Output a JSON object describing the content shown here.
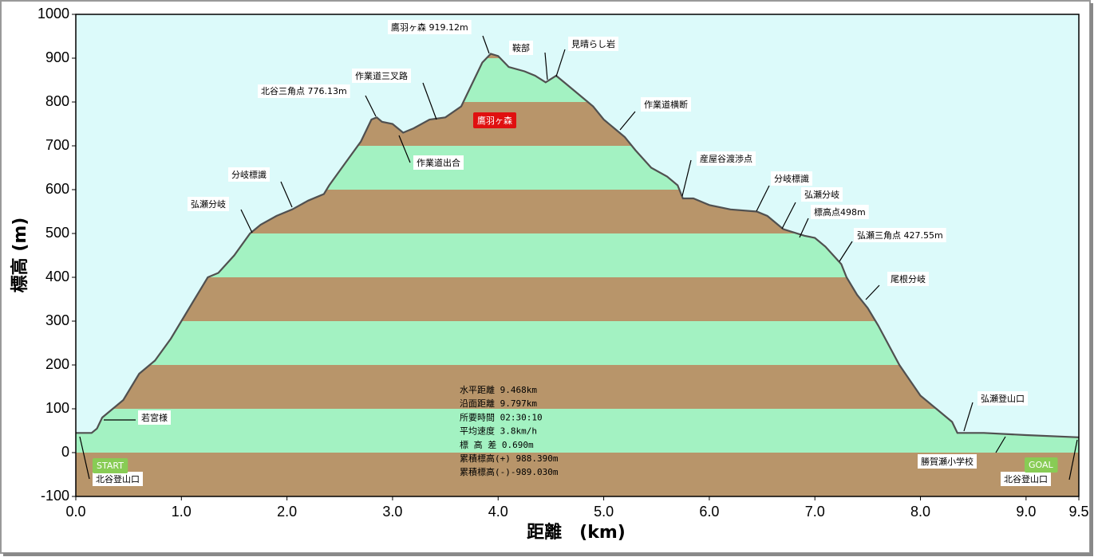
{
  "chart_data": {
    "type": "area",
    "x_label": "距離　(km)",
    "y_label": "標高 (m)",
    "xlim": [
      0,
      9.5
    ],
    "ylim": [
      -100,
      1000
    ],
    "xticks": [
      {
        "value": 0,
        "label": "0.0"
      },
      {
        "value": 1,
        "label": "1.0"
      },
      {
        "value": 2,
        "label": "2.0"
      },
      {
        "value": 3,
        "label": "3.0"
      },
      {
        "value": 4,
        "label": "4.0"
      },
      {
        "value": 5,
        "label": "5.0"
      },
      {
        "value": 6,
        "label": "6.0"
      },
      {
        "value": 7,
        "label": "7.0"
      },
      {
        "value": 8,
        "label": "8.0"
      },
      {
        "value": 9,
        "label": "9.0"
      },
      9.5
    ],
    "yticks": [
      -100,
      0,
      100,
      200,
      300,
      400,
      500,
      600,
      700,
      800,
      900,
      1000
    ],
    "line_color": "#505050",
    "band_colors": [
      "#b8956a",
      "#a3f2c2"
    ],
    "background": "#dcfafa",
    "x": [
      0,
      0.15,
      0.2,
      0.25,
      0.35,
      0.45,
      0.6,
      0.75,
      0.9,
      1.0,
      1.1,
      1.25,
      1.35,
      1.5,
      1.65,
      1.75,
      1.9,
      2.05,
      2.2,
      2.35,
      2.4,
      2.55,
      2.7,
      2.8,
      2.85,
      2.9,
      3.0,
      3.1,
      3.2,
      3.35,
      3.5,
      3.65,
      3.75,
      3.85,
      3.93,
      4.0,
      4.1,
      4.25,
      4.35,
      4.45,
      4.55,
      4.65,
      4.8,
      4.9,
      5.0,
      5.1,
      5.2,
      5.3,
      5.45,
      5.6,
      5.7,
      5.75,
      5.85,
      6.0,
      6.2,
      6.45,
      6.55,
      6.7,
      6.9,
      7.0,
      7.1,
      7.25,
      7.3,
      7.4,
      7.5,
      7.6,
      7.8,
      8.0,
      8.15,
      8.3,
      8.35,
      8.6,
      9.0,
      9.5
    ],
    "values": [
      45,
      45,
      55,
      80,
      100,
      120,
      180,
      210,
      260,
      300,
      340,
      400,
      410,
      450,
      500,
      520,
      540,
      555,
      575,
      590,
      610,
      660,
      710,
      760,
      765,
      755,
      750,
      730,
      740,
      760,
      765,
      790,
      840,
      890,
      910,
      905,
      880,
      870,
      860,
      845,
      860,
      840,
      810,
      790,
      760,
      740,
      720,
      690,
      650,
      630,
      610,
      580,
      580,
      565,
      555,
      550,
      540,
      510,
      495,
      490,
      470,
      430,
      400,
      360,
      330,
      290,
      200,
      130,
      100,
      70,
      45,
      45,
      40,
      35
    ],
    "annotations": [
      "鷹羽ヶ森 919.12m",
      "鞍部",
      "見晴らし岩",
      "作業道三叉路",
      "北谷三角点 776.13m",
      "作業道横断",
      "作業道出合",
      "分岐標識",
      "弘瀬分岐",
      "産屋谷渡渉点",
      "分岐標識",
      "弘瀬分岐",
      "標高点498m",
      "弘瀬三角点 427.55m",
      "尾根分岐",
      "弘瀬登山口",
      "勝賀瀬小学校",
      "若宮様",
      "北谷登山口",
      "北谷登山口"
    ],
    "peak_label": "鷹羽ヶ森",
    "start_label": "START",
    "goal_label": "GOAL",
    "stats": [
      "水平距離 9.468km",
      "沿面距離 9.797km",
      "所要時間 02:30:10",
      "平均速度 3.8km/h",
      "標 高 差 0.690m",
      "累積標高(+) 988.390m",
      "累積標高(-)-989.030m"
    ]
  }
}
